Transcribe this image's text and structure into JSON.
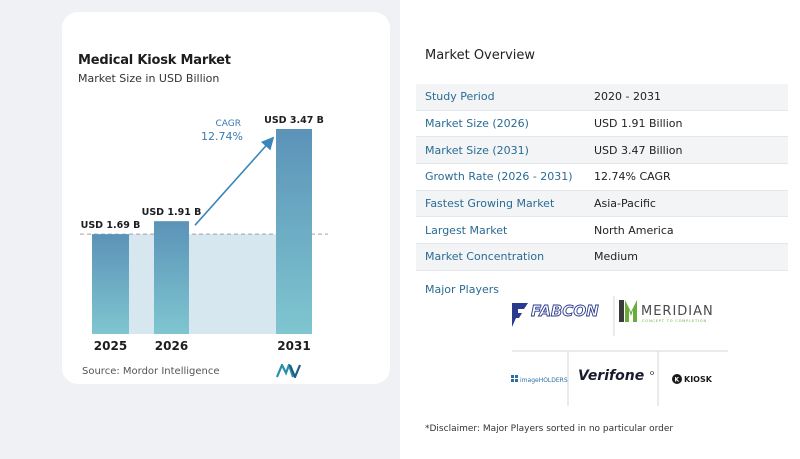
{
  "chart": {
    "title": "Medical Kiosk Market",
    "subtitle": "Market Size in USD Billion",
    "source": "Source:  Mordor Intelligence",
    "cagr_label": "CAGR",
    "cagr_value": "12.74%"
  },
  "chart_data": {
    "type": "bar",
    "title": "Medical Kiosk Market",
    "subtitle": "Market Size in USD Billion",
    "categories": [
      "2025",
      "2026",
      "2031"
    ],
    "values": [
      1.69,
      1.91,
      3.47
    ],
    "data_labels": [
      "USD 1.69 B",
      "USD 1.91 B",
      "USD 3.47 B"
    ],
    "ylim": [
      0,
      3.47
    ],
    "grid": false,
    "annotation": "CAGR 12.74%"
  },
  "overview": {
    "title": "Market Overview",
    "rows": [
      {
        "label": "Study Period",
        "value": "2020 - 2031"
      },
      {
        "label": "Market Size (2026)",
        "value": "USD 1.91 Billion"
      },
      {
        "label": "Market Size (2031)",
        "value": "USD 3.47 Billion"
      },
      {
        "label": "Growth Rate (2026 - 2031)",
        "value": "12.74% CAGR"
      },
      {
        "label": "Fastest Growing Market",
        "value": "Asia-Pacific"
      },
      {
        "label": "Largest Market",
        "value": "North America"
      },
      {
        "label": "Market Concentration",
        "value": "Medium"
      }
    ]
  },
  "players": {
    "title": "Major Players",
    "logos": [
      "FABCON",
      "MERIDIAN",
      "CONCEPT TO COMPLETION",
      "imageHOLDERS",
      "Verifone",
      "KIOSK"
    ]
  },
  "disclaimer": "*Disclaimer: Major Players sorted in no particular order",
  "colors": {
    "bar_top": "#5b93b8",
    "bar_bottom": "#7fc6d0",
    "shade": "#d6e7f0",
    "accent": "#3a86b8",
    "label_blue": "#2a6b93"
  }
}
